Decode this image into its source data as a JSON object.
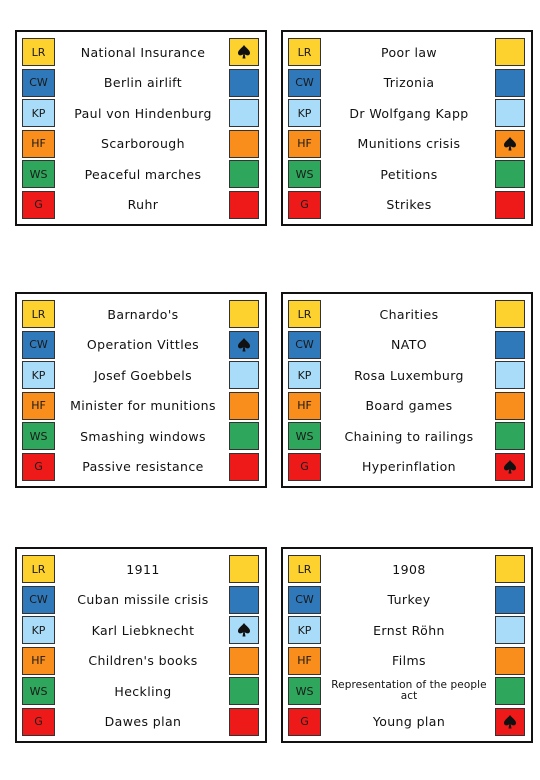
{
  "labels": [
    "LR",
    "CW",
    "KP",
    "HF",
    "WS",
    "G"
  ],
  "cards": [
    {
      "items": [
        "National Insurance",
        "Berlin airlift",
        "Paul von Hindenburg",
        "Scarborough",
        "Peaceful marches",
        "Ruhr"
      ]
    },
    {
      "items": [
        "Poor law",
        "Trizonia",
        "Dr Wolfgang Kapp",
        "Munitions crisis",
        "Petitions",
        "Strikes"
      ]
    },
    {
      "items": [
        "Barnardo's",
        "Operation Vittles",
        "Josef Goebbels",
        "Minister for munitions",
        "Smashing windows",
        "Passive resistance"
      ]
    },
    {
      "items": [
        "Charities",
        "NATO",
        "Rosa Luxemburg",
        "Board games",
        "Chaining to railings",
        "Hyperinflation"
      ]
    },
    {
      "items": [
        "1911",
        "Cuban missile crisis",
        "Karl Liebknecht",
        "Children's books",
        "Heckling",
        "Dawes plan"
      ]
    },
    {
      "items": [
        "1908",
        "Turkey",
        "Ernst Röhn",
        "Films",
        "Representation of the people act",
        "Young plan"
      ]
    }
  ]
}
